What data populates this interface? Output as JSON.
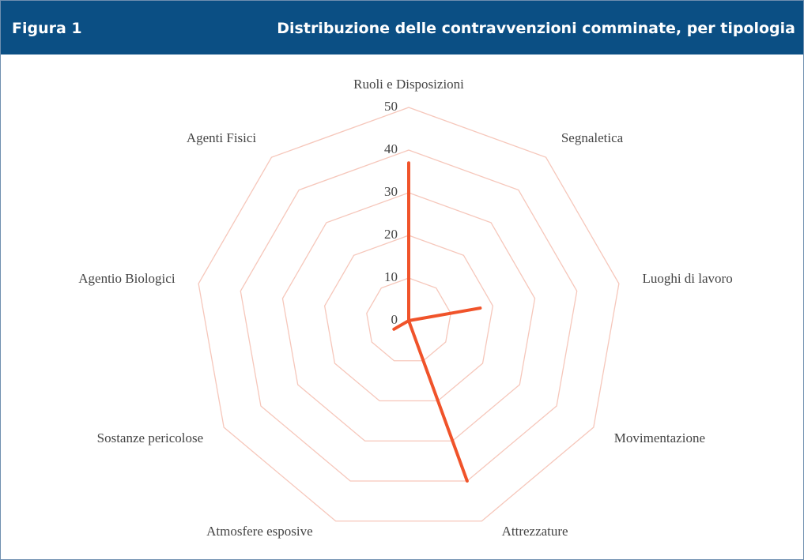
{
  "header": {
    "figure": "Figura 1",
    "title": "Distribuzione delle contravvenzioni comminate, per tipologia"
  },
  "chart_data": {
    "type": "radar",
    "categories": [
      "Ruoli e Disposizioni",
      "Segnaletica",
      "Luoghi di lavoro",
      "Movimentazione",
      "Attrezzature",
      "Atmosfere esposive",
      "Sostanze pericolose",
      "Agentio Biologici",
      "Agenti Fisici"
    ],
    "values": [
      37,
      0,
      17,
      0,
      40,
      0,
      4,
      0,
      0
    ],
    "color": "#f0532a",
    "grid_color": "#f6c7bb",
    "rlim": [
      0,
      50
    ],
    "rticks": [
      0,
      10,
      20,
      30,
      40,
      50
    ]
  }
}
